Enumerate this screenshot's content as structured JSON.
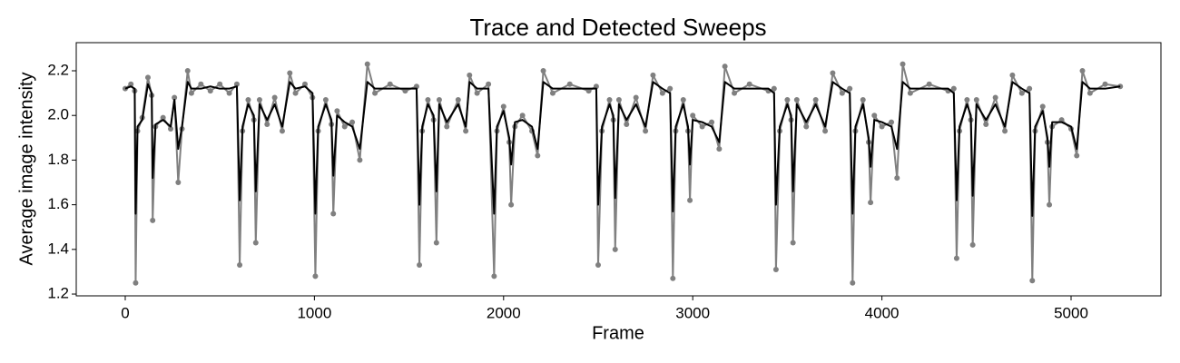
{
  "chart_data": {
    "type": "line",
    "title": "Trace and Detected Sweeps",
    "xlabel": "Frame",
    "ylabel": "Average image intensity",
    "x": [
      0,
      30,
      50,
      55,
      65,
      90,
      120,
      140,
      145,
      160,
      200,
      240,
      260,
      280,
      300,
      330,
      350,
      400,
      450,
      500,
      550,
      590,
      605,
      620,
      650,
      680,
      690,
      710,
      750,
      790,
      830,
      870,
      900,
      950,
      990,
      1005,
      1020,
      1060,
      1090,
      1100,
      1120,
      1160,
      1200,
      1240,
      1280,
      1320,
      1400,
      1480,
      1540,
      1555,
      1570,
      1600,
      1630,
      1645,
      1660,
      1700,
      1760,
      1800,
      1820,
      1860,
      1920,
      1950,
      1965,
      2000,
      2030,
      2040,
      2060,
      2100,
      2150,
      2180,
      2210,
      2260,
      2350,
      2450,
      2490,
      2500,
      2520,
      2560,
      2580,
      2590,
      2610,
      2650,
      2700,
      2750,
      2790,
      2840,
      2880,
      2895,
      2910,
      2950,
      2975,
      2985,
      3000,
      3050,
      3100,
      3140,
      3170,
      3220,
      3300,
      3400,
      3430,
      3440,
      3460,
      3500,
      3520,
      3530,
      3550,
      3600,
      3650,
      3700,
      3740,
      3790,
      3830,
      3845,
      3860,
      3900,
      3930,
      3940,
      3960,
      4000,
      4050,
      4080,
      4110,
      4150,
      4250,
      4350,
      4380,
      4395,
      4410,
      4450,
      4470,
      4480,
      4500,
      4550,
      4600,
      4650,
      4690,
      4740,
      4780,
      4795,
      4810,
      4850,
      4875,
      4885,
      4900,
      4950,
      5000,
      5030,
      5060,
      5100,
      5180,
      5260
    ],
    "series": [
      {
        "color": "#808080",
        "markers": true,
        "values": [
          2.12,
          2.14,
          2.11,
          1.25,
          1.93,
          1.99,
          2.17,
          2.09,
          1.53,
          1.95,
          1.99,
          1.94,
          2.08,
          1.7,
          1.94,
          2.2,
          2.1,
          2.14,
          2.11,
          2.14,
          2.1,
          2.14,
          1.33,
          1.93,
          2.07,
          1.98,
          1.43,
          2.07,
          1.96,
          2.08,
          1.93,
          2.19,
          2.1,
          2.14,
          2.08,
          1.28,
          1.93,
          2.07,
          1.96,
          1.56,
          2.02,
          1.95,
          1.97,
          1.8,
          2.23,
          2.1,
          2.14,
          2.11,
          2.13,
          1.33,
          1.93,
          2.07,
          1.98,
          1.43,
          2.07,
          1.95,
          2.07,
          1.93,
          2.18,
          2.1,
          2.14,
          1.28,
          1.93,
          2.04,
          1.88,
          1.6,
          1.95,
          2.0,
          1.93,
          1.82,
          2.2,
          2.1,
          2.14,
          2.11,
          2.13,
          1.33,
          1.93,
          2.07,
          1.98,
          1.4,
          2.07,
          1.96,
          2.08,
          1.93,
          2.18,
          2.1,
          2.12,
          1.27,
          1.93,
          2.07,
          1.93,
          1.62,
          2.0,
          1.95,
          1.97,
          1.85,
          2.22,
          2.1,
          2.14,
          2.11,
          2.12,
          1.31,
          1.93,
          2.07,
          1.98,
          1.43,
          2.07,
          1.95,
          2.07,
          1.93,
          2.19,
          2.1,
          2.12,
          1.25,
          1.93,
          2.07,
          1.88,
          1.61,
          2.0,
          1.95,
          1.97,
          1.72,
          2.23,
          2.1,
          2.14,
          2.11,
          2.12,
          1.36,
          1.93,
          2.07,
          1.98,
          1.42,
          2.07,
          1.96,
          2.08,
          1.93,
          2.18,
          2.1,
          2.12,
          1.26,
          1.93,
          2.04,
          1.88,
          1.6,
          1.95,
          1.98,
          1.94,
          1.82,
          2.2,
          2.1,
          2.14,
          2.13
        ]
      },
      {
        "color": "#000000",
        "markers": false,
        "values": [
          2.12,
          2.13,
          2.12,
          1.56,
          1.95,
          1.98,
          2.14,
          2.1,
          1.72,
          1.96,
          1.98,
          1.95,
          2.07,
          1.85,
          1.95,
          2.15,
          2.12,
          2.12,
          2.13,
          2.12,
          2.12,
          2.13,
          1.62,
          1.95,
          2.05,
          2.0,
          1.66,
          2.05,
          1.98,
          2.05,
          1.95,
          2.15,
          2.12,
          2.13,
          2.1,
          1.56,
          1.95,
          2.05,
          1.98,
          1.73,
          2.0,
          1.97,
          1.95,
          1.85,
          2.15,
          2.12,
          2.12,
          2.12,
          2.12,
          1.6,
          1.95,
          2.05,
          2.0,
          1.66,
          2.05,
          1.97,
          2.05,
          1.95,
          2.15,
          2.12,
          2.12,
          1.56,
          1.95,
          2.02,
          1.9,
          1.78,
          1.97,
          1.98,
          1.95,
          1.85,
          2.15,
          2.12,
          2.12,
          2.12,
          2.12,
          1.6,
          1.95,
          2.05,
          2.0,
          1.63,
          2.05,
          1.98,
          2.05,
          1.95,
          2.15,
          2.12,
          2.1,
          1.57,
          1.95,
          2.05,
          1.95,
          1.78,
          1.98,
          1.97,
          1.95,
          1.88,
          2.15,
          2.12,
          2.12,
          2.12,
          2.1,
          1.6,
          1.95,
          2.05,
          2.0,
          1.66,
          2.05,
          1.97,
          2.05,
          1.95,
          2.15,
          2.12,
          2.1,
          1.56,
          1.95,
          2.05,
          1.9,
          1.77,
          1.98,
          1.97,
          1.95,
          1.85,
          2.15,
          2.12,
          2.12,
          2.12,
          2.1,
          1.62,
          1.95,
          2.05,
          2.0,
          1.64,
          2.05,
          1.98,
          2.05,
          1.95,
          2.15,
          2.12,
          2.1,
          1.55,
          1.95,
          2.02,
          1.9,
          1.77,
          1.97,
          1.97,
          1.95,
          1.85,
          2.15,
          2.12,
          2.12,
          2.13
        ]
      }
    ],
    "xlim": [
      -259,
      5475
    ],
    "xticks": [
      0,
      1000,
      2000,
      3000,
      4000,
      5000
    ],
    "ylim": [
      1.192,
      2.326
    ],
    "yticks": [
      1.2,
      1.4,
      1.6,
      1.8,
      {
        "value": 2,
        "label": "2.0"
      },
      2.2
    ]
  }
}
